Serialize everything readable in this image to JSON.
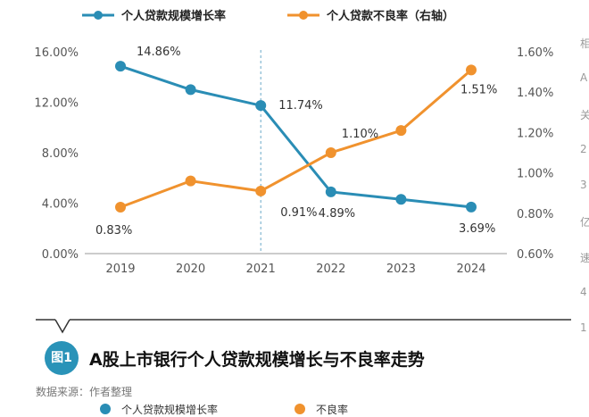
{
  "chart_data": {
    "type": "line",
    "categories": [
      "2019",
      "2020",
      "2021",
      "2022",
      "2023",
      "2024"
    ],
    "series": [
      {
        "name": "个人贷款规模增长率",
        "axis": "left",
        "color": "#2a8db5",
        "values": [
          14.86,
          13.0,
          11.74,
          4.89,
          4.3,
          3.69
        ],
        "labels": [
          "14.86%",
          "",
          "11.74%",
          "4.89%",
          "",
          "3.69%"
        ]
      },
      {
        "name": "个人贷款不良率（右轴）",
        "axis": "right",
        "color": "#f0922e",
        "values": [
          0.83,
          0.96,
          0.91,
          1.1,
          1.21,
          1.51
        ],
        "labels": [
          "0.83%",
          "",
          "0.91%",
          "1.10%",
          "",
          "1.51%"
        ]
      }
    ],
    "y_left": {
      "min": 0,
      "max": 16,
      "ticks": [
        0,
        4,
        8,
        12,
        16
      ],
      "tick_labels": [
        "0.00%",
        "4.00%",
        "8.00%",
        "12.00%",
        "16.00%"
      ]
    },
    "y_right": {
      "min": 0.6,
      "max": 1.6,
      "ticks": [
        0.6,
        0.8,
        1.0,
        1.2,
        1.4,
        1.6
      ],
      "tick_labels": [
        "0.60%",
        "0.80%",
        "1.00%",
        "1.20%",
        "1.40%",
        "1.60%"
      ]
    },
    "reference_line_at": "2021",
    "grid": false,
    "legend": "top"
  },
  "figure": {
    "badge": "图1",
    "title": "A股上市银行个人贷款规模增长与不良率走势",
    "source": "数据来源：作者整理"
  },
  "legend_repeat": {
    "item1": "个人贷款规模增长率",
    "item2": "不良率"
  },
  "side_fragments": [
    "相",
    "A",
    "关",
    "2",
    "3",
    "亿",
    "速",
    "4",
    "1"
  ],
  "colors": {
    "blue": "#2a8db5",
    "orange": "#f0922e",
    "axis": "#888888",
    "text": "#555555"
  }
}
